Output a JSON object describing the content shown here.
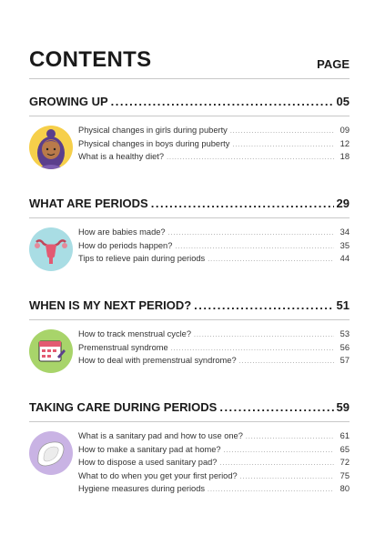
{
  "header": {
    "title": "CONTENTS",
    "page_label": "PAGE"
  },
  "sections": [
    {
      "title": "GROWING UP",
      "page": "05",
      "icon": "girl-face-icon",
      "items": [
        {
          "label": "Physical changes in girls during puberty",
          "page": "09"
        },
        {
          "label": "Physical changes in boys during puberty",
          "page": "12"
        },
        {
          "label": "What is a healthy diet?",
          "page": "18"
        }
      ]
    },
    {
      "title": "WHAT ARE PERIODS",
      "page": "29",
      "icon": "uterus-icon",
      "items": [
        {
          "label": "How are babies made?",
          "page": "34"
        },
        {
          "label": "How do periods happen?",
          "page": "35"
        },
        {
          "label": "Tips to relieve pain during periods",
          "page": "44"
        }
      ]
    },
    {
      "title": "WHEN IS MY NEXT PERIOD?",
      "page": "51",
      "icon": "calendar-icon",
      "items": [
        {
          "label": "How to track menstrual cycle?",
          "page": "53"
        },
        {
          "label": "Premenstrual syndrome",
          "page": "56"
        },
        {
          "label": "How to deal with premenstrual syndrome?",
          "page": "57"
        }
      ]
    },
    {
      "title": "TAKING CARE DURING PERIODS",
      "page": "59",
      "icon": "sanitary-pad-icon",
      "items": [
        {
          "label": "What is a sanitary pad and how to use one?",
          "page": "61"
        },
        {
          "label": "How to make a sanitary pad at home?",
          "page": "65"
        },
        {
          "label": "How to dispose a used sanitary pad?",
          "page": "72"
        },
        {
          "label": "What to do when you get your first period?",
          "page": "75"
        },
        {
          "label": "Hygiene measures during periods",
          "page": "80"
        }
      ]
    }
  ]
}
